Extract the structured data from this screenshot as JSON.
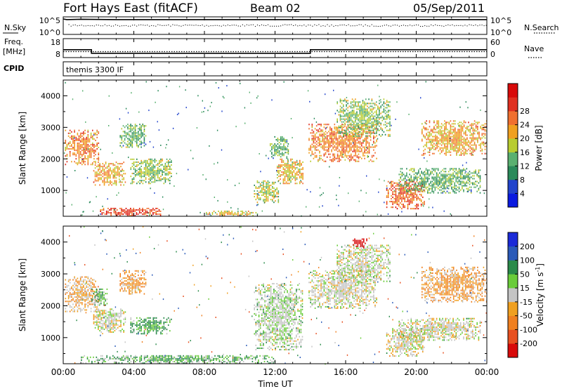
{
  "header": {
    "station": "Fort Hays East (fitACF)",
    "beam": "Beam 02",
    "date": "05/Sep/2011"
  },
  "nsky_panel": {
    "left_label": "N.Sky",
    "right_label": "N.Search",
    "left_ticks": [
      "10^5",
      "10^0"
    ],
    "right_ticks": [
      "10^5",
      "10^0"
    ]
  },
  "freq_panel": {
    "left_label_line1": "Freq.",
    "left_label_line2": "[MHz]",
    "right_label": "Nave",
    "left_ticks": [
      "18",
      "8"
    ],
    "right_ticks": [
      "60",
      "0"
    ]
  },
  "cpid_panel": {
    "label": "CPID",
    "program": "themis 3300 IF"
  },
  "x_axis": {
    "label": "Time UT",
    "ticks": [
      "00:00",
      "04:00",
      "08:00",
      "12:00",
      "16:00",
      "20:00",
      "00:00"
    ]
  },
  "y_axis": {
    "label": "Slant Range [km]",
    "ticks": [
      "1000",
      "2000",
      "3000",
      "4000"
    ]
  },
  "power_colorbar": {
    "label": "Power [dB]",
    "ticks": [
      "4",
      "8",
      "12",
      "16",
      "20",
      "24",
      "28"
    ],
    "colors": [
      "#0a1ae0",
      "#2244cc",
      "#2a8a5a",
      "#5ab070",
      "#b8cc30",
      "#f0a020",
      "#f07030",
      "#e03020",
      "#d80a0a"
    ]
  },
  "velocity_colorbar": {
    "label_main": "Velocity [m s",
    "label_sup": "-1",
    "label_end": "]",
    "ticks": [
      "200",
      "100",
      "50",
      "15",
      "-15",
      "-50",
      "-100",
      "-200"
    ],
    "colors": [
      "#1a2ad8",
      "#2a5ab8",
      "#2a8a4a",
      "#6acc3a",
      "#c4c4c4",
      "#f0a020",
      "#f08020",
      "#e85020",
      "#d80a0a"
    ]
  },
  "chart_data": {
    "type": "heatmap",
    "x": {
      "unit": "hours UT",
      "min": 0,
      "max": 24
    },
    "y": {
      "unit": "km",
      "min": 180,
      "max": 4500
    },
    "series": [
      {
        "name": "N.Sky",
        "values_note": "log10 count",
        "points": [
          [
            0,
            5
          ],
          [
            0.2,
            4.8
          ],
          [
            1,
            4.9
          ],
          [
            3,
            4.8
          ],
          [
            6,
            4.8
          ],
          [
            9,
            4.8
          ],
          [
            12,
            4.8
          ],
          [
            15,
            4.8
          ],
          [
            18,
            4.8
          ],
          [
            21,
            4.8
          ],
          [
            24,
            4.8
          ]
        ]
      },
      {
        "name": "Freq",
        "unit": "MHz",
        "points": [
          [
            0,
            14
          ],
          [
            1.6,
            14
          ],
          [
            1.6,
            11
          ],
          [
            14,
            11
          ],
          [
            14,
            14
          ],
          [
            24,
            14
          ]
        ]
      },
      {
        "name": "Nave",
        "points": [
          [
            0,
            20
          ],
          [
            24,
            20
          ]
        ]
      }
    ],
    "power_regions": [
      {
        "t0": 0.1,
        "t1": 2.0,
        "r0": 1800,
        "r1": 2900,
        "power": 22
      },
      {
        "t0": 1.7,
        "t1": 3.5,
        "r0": 1150,
        "r1": 1900,
        "power": 20
      },
      {
        "t0": 3.2,
        "t1": 4.7,
        "r0": 2350,
        "r1": 3100,
        "power": 12
      },
      {
        "t0": 3.8,
        "t1": 6.1,
        "r0": 1200,
        "r1": 2000,
        "power": 14
      },
      {
        "t0": 2.0,
        "t1": 5.5,
        "r0": 180,
        "r1": 450,
        "power": 26
      },
      {
        "t0": 8.0,
        "t1": 11.0,
        "r0": 180,
        "r1": 350,
        "power": 18
      },
      {
        "t0": 10.8,
        "t1": 12.2,
        "r0": 600,
        "r1": 1300,
        "power": 16
      },
      {
        "t0": 12.1,
        "t1": 13.6,
        "r0": 1200,
        "r1": 2000,
        "power": 18
      },
      {
        "t0": 11.7,
        "t1": 12.8,
        "r0": 2000,
        "r1": 2700,
        "power": 12
      },
      {
        "t0": 13.9,
        "t1": 17.8,
        "r0": 1900,
        "r1": 3100,
        "power": 22
      },
      {
        "t0": 15.5,
        "t1": 18.5,
        "r0": 2700,
        "r1": 3900,
        "power": 14
      },
      {
        "t0": 18.3,
        "t1": 20.5,
        "r0": 400,
        "r1": 1300,
        "power": 24
      },
      {
        "t0": 19.0,
        "t1": 23.6,
        "r0": 900,
        "r1": 1700,
        "power": 12
      },
      {
        "t0": 20.3,
        "t1": 24.0,
        "r0": 2100,
        "r1": 3200,
        "power": 20
      }
    ],
    "velocity_regions": [
      {
        "t0": 0.1,
        "t1": 2.0,
        "r0": 1800,
        "r1": 2900,
        "velocity": -20
      },
      {
        "t0": 1.6,
        "t1": 2.5,
        "r0": 2000,
        "r1": 2500,
        "velocity": 30
      },
      {
        "t0": 1.7,
        "t1": 3.5,
        "r0": 1150,
        "r1": 1900,
        "velocity": 0
      },
      {
        "t0": 3.2,
        "t1": 4.7,
        "r0": 2350,
        "r1": 3100,
        "velocity": -30
      },
      {
        "t0": 3.8,
        "t1": 6.1,
        "r0": 1100,
        "r1": 1600,
        "velocity": 40
      },
      {
        "t0": 1.0,
        "t1": 12.0,
        "r0": 180,
        "r1": 450,
        "velocity": 30
      },
      {
        "t0": 10.8,
        "t1": 13.6,
        "r0": 600,
        "r1": 2700,
        "velocity": 10
      },
      {
        "t0": 13.9,
        "t1": 17.8,
        "r0": 1900,
        "r1": 3100,
        "velocity": 0
      },
      {
        "t0": 15.5,
        "t1": 18.5,
        "r0": 2700,
        "r1": 3900,
        "velocity": 0
      },
      {
        "t0": 16.4,
        "t1": 17.2,
        "r0": 3800,
        "r1": 4100,
        "velocity": -250
      },
      {
        "t0": 18.3,
        "t1": 20.5,
        "r0": 400,
        "r1": 1300,
        "velocity": 0
      },
      {
        "t0": 19.0,
        "t1": 23.6,
        "r0": 900,
        "r1": 1600,
        "velocity": 0
      },
      {
        "t0": 20.3,
        "t1": 24.0,
        "r0": 2100,
        "r1": 3200,
        "velocity": -30
      }
    ]
  }
}
